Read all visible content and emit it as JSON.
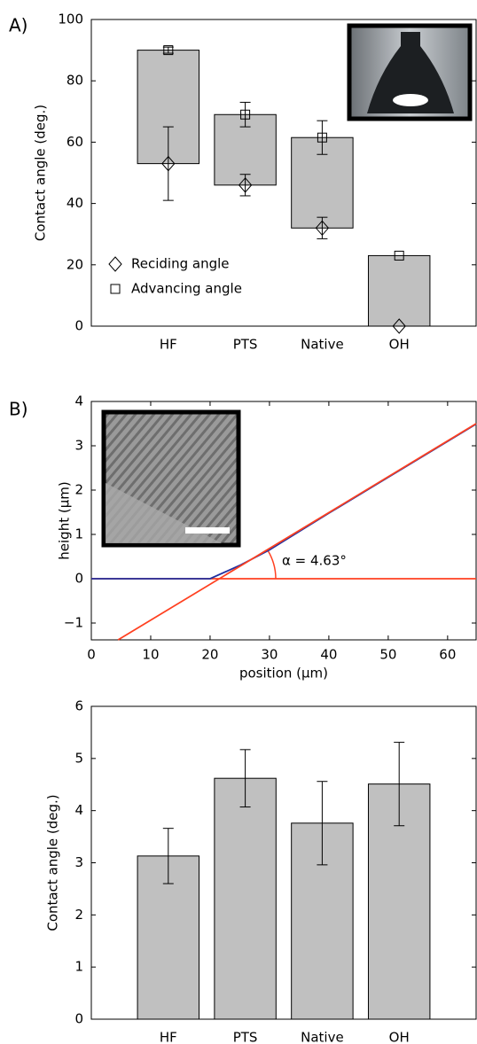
{
  "chart_data": [
    {
      "type": "range-bar",
      "panel_label": "A)",
      "ylabel": "Contact angle (deg.)",
      "categories": [
        "HF",
        "PTS",
        "Native",
        "OH"
      ],
      "ylim": [
        0,
        100
      ],
      "yticks": [
        0,
        20,
        40,
        60,
        80,
        100
      ],
      "bar_color": "#c0c0c0",
      "legend": "lower left",
      "series": [
        {
          "name": "Reciding angle",
          "marker": "diamond",
          "values": [
            53,
            46,
            32,
            0
          ],
          "errors": [
            12,
            3.5,
            3.5,
            0
          ]
        },
        {
          "name": "Advancing angle",
          "marker": "square",
          "values": [
            90,
            69,
            61.5,
            23
          ],
          "errors": [
            1,
            4,
            5.5,
            0
          ]
        }
      ]
    },
    {
      "type": "line",
      "panel_label": "B)",
      "xlabel": "position (μm)",
      "ylabel": "height (μm)",
      "annotation": "α = 4.63°",
      "xlim": [
        0,
        64.8
      ],
      "xticks": [
        0,
        10,
        20,
        30,
        40,
        50,
        60
      ],
      "ylim": [
        -1.38,
        4
      ],
      "yticks": [
        {
          "value": -1,
          "label": "−1"
        },
        0,
        1,
        2,
        3,
        4
      ],
      "series": [
        {
          "color": "#ff4020",
          "x": [
            0,
            64.8
          ],
          "values": [
            0,
            0
          ]
        },
        {
          "color": "#2030a0",
          "x": [
            0,
            20,
            25,
            30,
            40,
            50,
            60,
            64.8
          ],
          "values": [
            0,
            0,
            0.3,
            0.65,
            1.48,
            2.29,
            3.1,
            3.49
          ]
        },
        {
          "color": "#ff4020",
          "x": [
            4.5,
            64.8
          ],
          "values": [
            -1.38,
            3.5
          ]
        }
      ]
    },
    {
      "type": "bar",
      "ylabel": "Contact angle (deg.)",
      "categories": [
        "HF",
        "PTS",
        "Native",
        "OH"
      ],
      "values": [
        3.13,
        4.62,
        3.76,
        4.51
      ],
      "errors": [
        0.53,
        0.55,
        0.8,
        0.8
      ],
      "ylim": [
        0,
        6
      ],
      "yticks": [
        0,
        1,
        2,
        3,
        4,
        5,
        6
      ],
      "bar_color": "#c0c0c0"
    }
  ]
}
